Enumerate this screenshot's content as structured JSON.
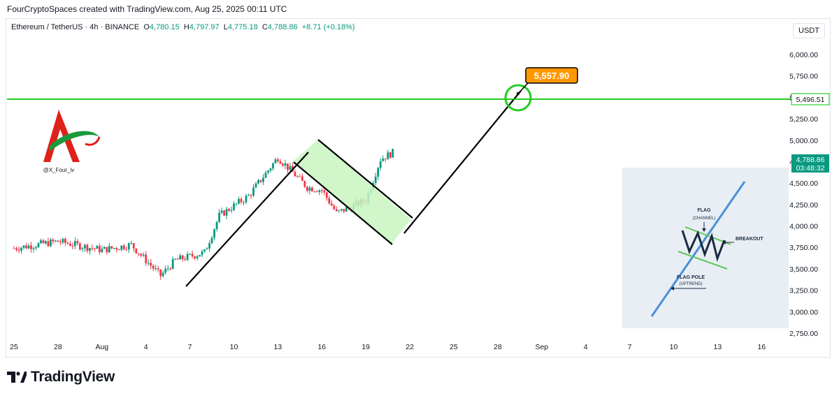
{
  "header": {
    "caption": "FourCryptoSpaces created with TradingView.com, Aug 25, 2025 00:11 UTC"
  },
  "legend": {
    "symbol": "Ethereum / TetherUS · 4h · BINANCE",
    "open_label": "O",
    "open": "4,780.15",
    "high_label": "H",
    "high": "4,797.97",
    "low_label": "L",
    "low": "4,775.18",
    "close_label": "C",
    "close": "4,788.86",
    "change": "+8.71 (+0.18%)"
  },
  "currency_button": "USDT",
  "watermark": {
    "handle": "@X_Four_iv"
  },
  "footer": {
    "brand": "TradingView"
  },
  "colors": {
    "up": "#089981",
    "down": "#f23645",
    "resistance": "#00c800",
    "target": "#ff9800",
    "channel_fill": "#c8f5c0"
  },
  "chart_data": {
    "type": "candlestick",
    "symbol": "ETHUSDT",
    "timeframe": "4h",
    "ylim": [
      2750,
      6000
    ],
    "y_ticks": [
      "6,000.00",
      "5,750.00",
      "5,500.00",
      "5,250.00",
      "5,000.00",
      "4,750.00",
      "4,500.00",
      "4,250.00",
      "4,000.00",
      "3,750.00",
      "3,500.00",
      "3,250.00",
      "3,000.00",
      "2,750.00"
    ],
    "x_ticks": [
      "25",
      "28",
      "Aug",
      "4",
      "7",
      "10",
      "13",
      "16",
      "19",
      "22",
      "25",
      "28",
      "Sep",
      "4",
      "7",
      "10",
      "13",
      "16"
    ],
    "resistance_level": "5,496.51",
    "target_price": "5,557.90",
    "last_price": "4,788.86",
    "countdown": "03:48:32",
    "price_path_x": [
      0,
      3,
      6,
      8,
      10,
      11,
      13,
      14,
      16,
      18,
      20,
      21,
      22,
      24,
      25,
      26
    ],
    "price_path_y": [
      3740,
      3820,
      3720,
      3780,
      3420,
      3600,
      3690,
      4120,
      4350,
      4800,
      4450,
      4420,
      4150,
      4300,
      4780,
      4870
    ],
    "inset": {
      "flag_label": "FLAG",
      "channel_label": "(CHANNEL)",
      "breakout_label": "BREAKOUT",
      "pole_label": "FLAG POLE",
      "uptrend_label": "(UPTREND)"
    }
  }
}
